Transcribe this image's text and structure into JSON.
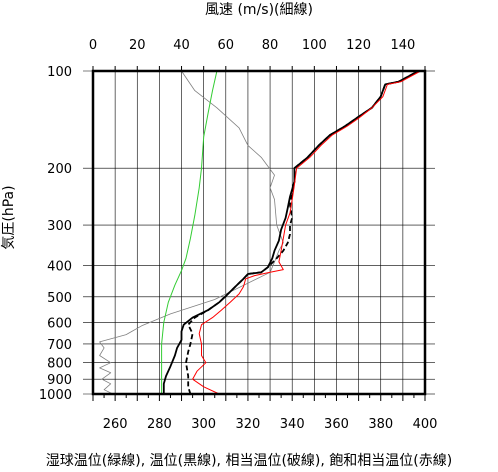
{
  "chart_data": {
    "type": "line",
    "top_axis_label": "風速 (m/s)(細線)",
    "ylabel": "気圧(hPa)",
    "xlabel": "湿球温位(緑線), 温位(黒線), 相当温位(破線), 飽和相当温位(赤線)",
    "x_temperature_ticks": [
      "260",
      "280",
      "300",
      "320",
      "340",
      "360",
      "380",
      "400"
    ],
    "x_temperature_values": [
      260,
      280,
      300,
      320,
      340,
      360,
      380,
      400
    ],
    "x_temperature_range": [
      250,
      400
    ],
    "x_wind_ticks": [
      "0",
      "20",
      "40",
      "60",
      "80",
      "100",
      "120",
      "140"
    ],
    "x_wind_values": [
      0,
      20,
      40,
      60,
      80,
      100,
      120,
      140
    ],
    "x_wind_range": [
      0,
      150
    ],
    "y_pressure_ticks": [
      "100",
      "200",
      "300",
      "400",
      "500",
      "600",
      "700",
      "800",
      "900",
      "1000"
    ],
    "y_pressure_values": [
      100,
      200,
      300,
      400,
      500,
      600,
      700,
      800,
      900,
      1000
    ],
    "y_pressure_range": [
      1000,
      100
    ],
    "y_scale": "log",
    "grid": true,
    "series": [
      {
        "name": "風速",
        "axis": "wind",
        "color": "#808080",
        "dash": "solid",
        "points": [
          [
            9,
            1000
          ],
          [
            5,
            970
          ],
          [
            8,
            930
          ],
          [
            4,
            900
          ],
          [
            8,
            860
          ],
          [
            3,
            830
          ],
          [
            8,
            800
          ],
          [
            3,
            760
          ],
          [
            5,
            720
          ],
          [
            3,
            690
          ],
          [
            15,
            655
          ],
          [
            22,
            615
          ],
          [
            35,
            565
          ],
          [
            55,
            510
          ],
          [
            80,
            420
          ],
          [
            82,
            390
          ],
          [
            84,
            360
          ],
          [
            86,
            340
          ],
          [
            83,
            300
          ],
          [
            82,
            250
          ],
          [
            80,
            230
          ],
          [
            82,
            210
          ],
          [
            76,
            185
          ],
          [
            70,
            170
          ],
          [
            66,
            150
          ],
          [
            56,
            130
          ],
          [
            46,
            115
          ],
          [
            40,
            100
          ]
        ]
      },
      {
        "name": "湿球温位",
        "axis": "temperature",
        "color": "#33cc33",
        "dash": "solid",
        "points": [
          [
            281,
            1000
          ],
          [
            281,
            900
          ],
          [
            281,
            800
          ],
          [
            281,
            700
          ],
          [
            282,
            600
          ],
          [
            284,
            520
          ],
          [
            287,
            460
          ],
          [
            290,
            415
          ],
          [
            292,
            380
          ],
          [
            294,
            330
          ],
          [
            296,
            280
          ],
          [
            298,
            230
          ],
          [
            299,
            200
          ],
          [
            300,
            160
          ],
          [
            302,
            135
          ],
          [
            304,
            115
          ],
          [
            306,
            100
          ]
        ]
      },
      {
        "name": "温位",
        "axis": "temperature",
        "color": "#000000",
        "dash": "solid",
        "points": [
          [
            282,
            1000
          ],
          [
            282,
            930
          ],
          [
            283,
            880
          ],
          [
            285,
            820
          ],
          [
            287,
            760
          ],
          [
            288,
            720
          ],
          [
            290,
            680
          ],
          [
            290,
            640
          ],
          [
            291,
            610
          ],
          [
            295,
            580
          ],
          [
            302,
            550
          ],
          [
            307,
            520
          ],
          [
            311,
            490
          ],
          [
            315,
            460
          ],
          [
            318,
            440
          ],
          [
            320,
            425
          ],
          [
            326,
            420
          ],
          [
            329,
            405
          ],
          [
            331,
            380
          ],
          [
            332,
            360
          ],
          [
            334,
            335
          ],
          [
            335,
            310
          ],
          [
            337,
            285
          ],
          [
            338,
            265
          ],
          [
            339,
            245
          ],
          [
            341,
            220
          ],
          [
            341,
            200
          ],
          [
            347,
            185
          ],
          [
            352,
            170
          ],
          [
            357,
            158
          ],
          [
            364,
            148
          ],
          [
            369,
            140
          ],
          [
            376,
            130
          ],
          [
            380,
            120
          ],
          [
            382,
            110
          ],
          [
            388,
            108
          ],
          [
            397,
            100
          ]
        ]
      },
      {
        "name": "相当温位",
        "axis": "temperature",
        "color": "#000000",
        "dash": "dashed",
        "points": [
          [
            294,
            1000
          ],
          [
            293,
            950
          ],
          [
            293,
            880
          ],
          [
            292,
            800
          ],
          [
            293,
            740
          ],
          [
            294,
            700
          ],
          [
            295,
            650
          ],
          [
            293,
            610
          ],
          [
            296,
            580
          ],
          [
            302,
            550
          ],
          [
            307,
            520
          ],
          [
            311,
            490
          ],
          [
            315,
            460
          ],
          [
            318,
            440
          ],
          [
            320,
            425
          ],
          [
            326,
            420
          ],
          [
            329,
            405
          ],
          [
            333,
            380
          ],
          [
            336,
            360
          ],
          [
            338,
            340
          ],
          [
            339,
            320
          ],
          [
            339,
            300
          ],
          [
            340,
            285
          ],
          [
            339,
            260
          ],
          [
            340,
            240
          ],
          [
            341,
            220
          ],
          [
            341,
            200
          ],
          [
            347,
            185
          ],
          [
            352,
            170
          ],
          [
            357,
            158
          ],
          [
            364,
            148
          ],
          [
            369,
            140
          ],
          [
            376,
            130
          ],
          [
            380,
            120
          ],
          [
            382,
            110
          ],
          [
            388,
            108
          ],
          [
            397,
            100
          ]
        ]
      },
      {
        "name": "飽和相当温位",
        "axis": "temperature",
        "color": "#ff0000",
        "dash": "solid",
        "points": [
          [
            307,
            1000
          ],
          [
            300,
            950
          ],
          [
            295,
            900
          ],
          [
            297,
            850
          ],
          [
            301,
            800
          ],
          [
            299,
            760
          ],
          [
            299,
            700
          ],
          [
            298,
            650
          ],
          [
            299,
            610
          ],
          [
            304,
            580
          ],
          [
            308,
            550
          ],
          [
            312,
            520
          ],
          [
            316,
            490
          ],
          [
            318,
            465
          ],
          [
            319,
            440
          ],
          [
            323,
            430
          ],
          [
            330,
            420
          ],
          [
            336,
            412
          ],
          [
            334,
            390
          ],
          [
            335,
            360
          ],
          [
            336,
            330
          ],
          [
            337,
            300
          ],
          [
            339,
            275
          ],
          [
            340,
            250
          ],
          [
            341,
            225
          ],
          [
            342,
            200
          ],
          [
            348,
            185
          ],
          [
            353,
            170
          ],
          [
            358,
            158
          ],
          [
            365,
            148
          ],
          [
            370,
            140
          ],
          [
            376,
            130
          ],
          [
            381,
            120
          ],
          [
            383,
            110
          ],
          [
            389,
            108
          ],
          [
            398,
            100
          ]
        ]
      }
    ]
  }
}
